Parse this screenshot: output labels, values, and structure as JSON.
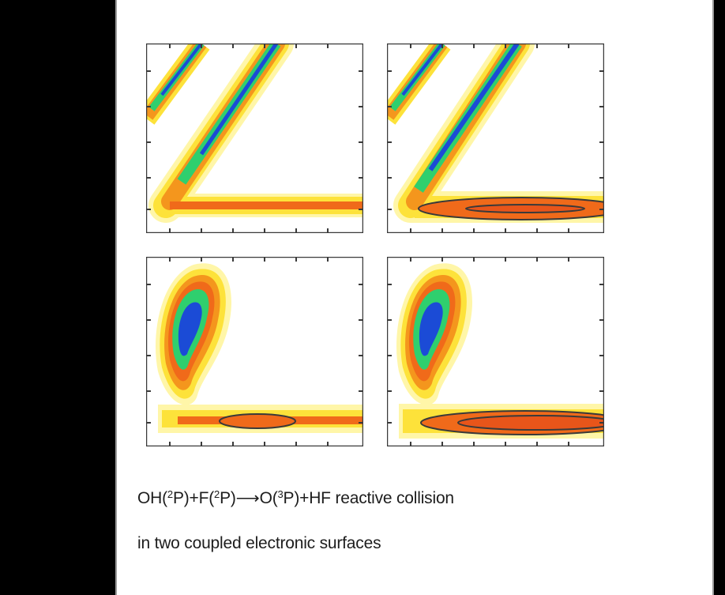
{
  "figure": {
    "panels": [
      {
        "id": "top-left"
      },
      {
        "id": "top-right"
      },
      {
        "id": "bottom-left"
      },
      {
        "id": "bottom-right"
      }
    ],
    "colors": {
      "outer": "#fff6a8",
      "yellow": "#fde23a",
      "orange": "#f4961d",
      "red_orange": "#f06a1a",
      "green": "#2fcf6e",
      "blue": "#1b4bd6",
      "frame": "#3a3a3a"
    }
  },
  "caption": {
    "line1": {
      "p1": "OH(",
      "s1": "2",
      "p2": "P)+F(",
      "s2": "2",
      "p3": "P)",
      "arrow": "⟶",
      "p4": "O(",
      "s3": "3",
      "p5": "P)+HF reactive collision"
    },
    "line2": "in two coupled electronic surfaces"
  }
}
